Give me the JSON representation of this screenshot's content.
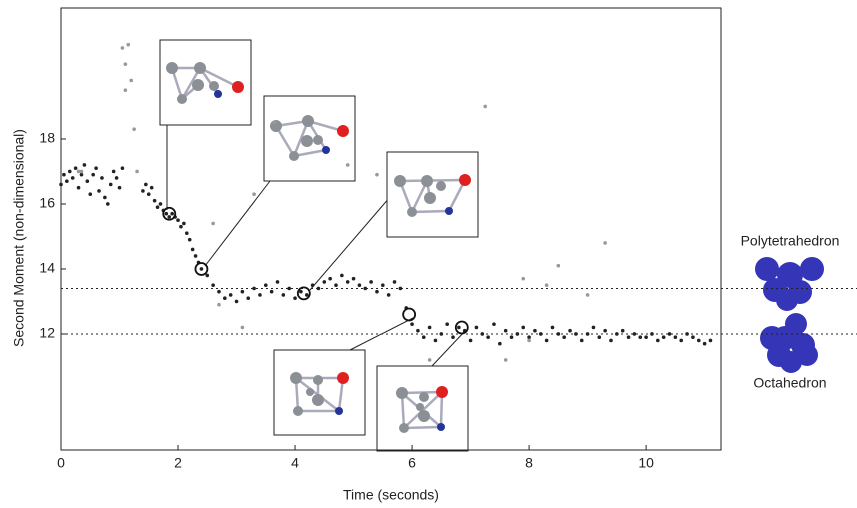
{
  "chart_data": {
    "type": "scatter",
    "xlabel": "Time (seconds)",
    "ylabel": "Second Moment (non-dimensional)",
    "xlim": [
      0,
      11.28
    ],
    "ylim": [
      8.43,
      22.03
    ],
    "xticks": [
      0,
      2,
      4,
      6,
      8,
      10
    ],
    "yticks": [
      12,
      14,
      16,
      18
    ],
    "series": [
      {
        "color": "#222222",
        "x": [
          0.0,
          0.05,
          0.1,
          0.15,
          0.2,
          0.25,
          0.3,
          0.35,
          0.4,
          0.45,
          0.5,
          0.55,
          0.6,
          0.65,
          0.7,
          0.75,
          0.8,
          0.85,
          0.9,
          0.95,
          1.0,
          1.05,
          1.4,
          1.45,
          1.5,
          1.55,
          1.6,
          1.65,
          1.7,
          1.75,
          1.8,
          1.85,
          1.9,
          1.95,
          2.0,
          2.05,
          2.1,
          2.15,
          2.2,
          2.25,
          2.3,
          2.35,
          2.4,
          2.5,
          2.6,
          2.7,
          2.8,
          2.9,
          3.0,
          3.1,
          3.2,
          3.3,
          3.4,
          3.5,
          3.6,
          3.7,
          3.8,
          3.9,
          4.0,
          4.1,
          4.2,
          4.3,
          4.4,
          4.5,
          4.6,
          4.7,
          4.8,
          4.9,
          5.0,
          5.1,
          5.2,
          5.3,
          5.4,
          5.5,
          5.6,
          5.7,
          5.8,
          5.9,
          6.0,
          6.1,
          6.2,
          6.3,
          6.4,
          6.5,
          6.6,
          6.7,
          6.8,
          6.9,
          7.0,
          7.1,
          7.2,
          7.3,
          7.4,
          7.5,
          7.6,
          7.7,
          7.8,
          7.9,
          8.0,
          8.1,
          8.2,
          8.3,
          8.4,
          8.5,
          8.6,
          8.7,
          8.8,
          8.9,
          9.0,
          9.1,
          9.2,
          9.3,
          9.4,
          9.5,
          9.6,
          9.7,
          9.8,
          9.9,
          10.0,
          10.1,
          10.2,
          10.3,
          10.4,
          10.5,
          10.6,
          10.7,
          10.8,
          10.9,
          11.0,
          11.1
        ],
        "values": [
          16.6,
          16.9,
          16.7,
          17.0,
          16.8,
          17.1,
          16.5,
          16.9,
          17.2,
          16.7,
          16.3,
          16.9,
          17.1,
          16.4,
          16.8,
          16.2,
          16.0,
          16.6,
          17.0,
          16.8,
          16.5,
          17.1,
          16.4,
          16.6,
          16.3,
          16.5,
          16.1,
          15.9,
          16.0,
          15.8,
          15.7,
          15.6,
          15.7,
          15.6,
          15.5,
          15.3,
          15.4,
          15.1,
          14.9,
          14.6,
          14.4,
          14.2,
          14.0,
          13.8,
          13.5,
          13.3,
          13.1,
          13.2,
          13.0,
          13.3,
          13.1,
          13.4,
          13.2,
          13.5,
          13.3,
          13.6,
          13.2,
          13.4,
          13.1,
          13.3,
          13.2,
          13.5,
          13.4,
          13.6,
          13.7,
          13.5,
          13.8,
          13.6,
          13.7,
          13.5,
          13.4,
          13.6,
          13.3,
          13.5,
          13.2,
          13.6,
          13.4,
          12.8,
          12.3,
          12.1,
          11.9,
          12.2,
          11.8,
          12.0,
          12.3,
          11.9,
          12.2,
          12.1,
          11.8,
          12.2,
          12.0,
          11.9,
          12.3,
          11.7,
          12.1,
          11.9,
          12.0,
          12.2,
          11.9,
          12.1,
          12.0,
          11.8,
          12.2,
          12.0,
          11.9,
          12.1,
          12.0,
          11.8,
          12.0,
          12.2,
          11.9,
          12.1,
          11.8,
          12.0,
          12.1,
          11.9,
          12.0,
          11.9,
          11.9,
          12.0,
          11.8,
          11.9,
          12.0,
          11.9,
          11.8,
          12.0,
          11.9,
          11.8,
          11.7,
          11.8
        ]
      },
      {
        "color": "#999999",
        "x": [
          1.05,
          1.1,
          1.15,
          1.1,
          1.2,
          1.25,
          1.3,
          2.6,
          2.7,
          3.1,
          3.3,
          3.65,
          4.9,
          5.4,
          6.3,
          7.25,
          7.6,
          7.9,
          8.0,
          8.3,
          8.5,
          9.0,
          9.3,
          0.3,
          0.35
        ],
        "values": [
          20.8,
          20.3,
          20.9,
          19.5,
          19.8,
          18.3,
          17.0,
          15.4,
          12.9,
          12.2,
          16.3,
          18.5,
          17.2,
          16.9,
          11.2,
          19.0,
          11.2,
          13.7,
          11.8,
          13.5,
          14.1,
          13.2,
          14.8,
          17.0,
          17.0
        ]
      }
    ],
    "highlights": {
      "x": [
        1.85,
        2.4,
        4.15,
        5.95,
        6.85
      ],
      "y": [
        15.7,
        14.0,
        13.25,
        12.6,
        12.2
      ]
    },
    "hlines": [
      13.4,
      12.0
    ],
    "hline_labels": [
      "Polytetrahedron",
      "Octahedron"
    ]
  }
}
